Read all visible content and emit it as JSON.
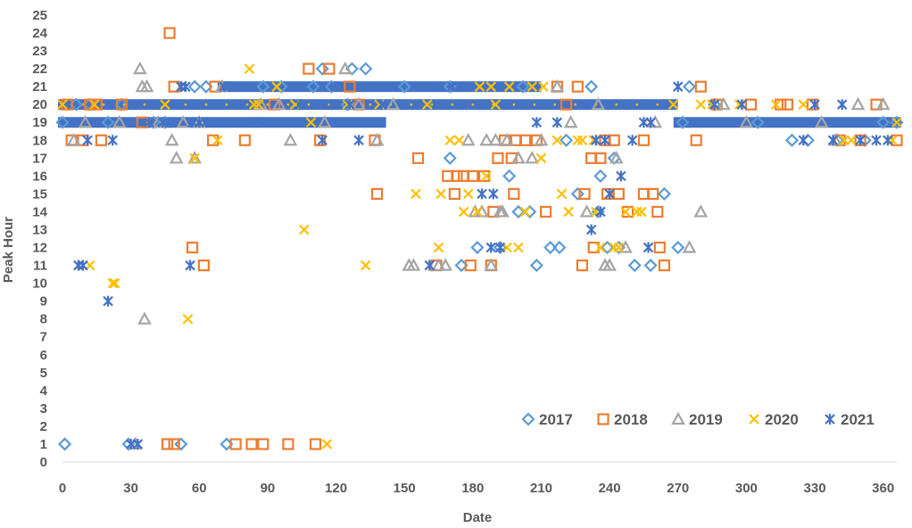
{
  "chart_data": {
    "type": "scatter",
    "title": "",
    "xlabel": "Date",
    "ylabel": "Peak Hour",
    "xlim": [
      0,
      366
    ],
    "ylim": [
      0,
      25
    ],
    "x_ticks": [
      0,
      30,
      60,
      90,
      120,
      150,
      180,
      210,
      240,
      270,
      300,
      330,
      360
    ],
    "y_ticks": [
      0,
      1,
      2,
      3,
      4,
      5,
      6,
      7,
      8,
      9,
      10,
      11,
      12,
      13,
      14,
      15,
      16,
      17,
      18,
      19,
      20,
      21,
      22,
      23,
      24,
      25
    ],
    "grid": "none",
    "legend_position": "bottom-right, inside plot",
    "series": [
      {
        "name": "2017",
        "marker": "diamond",
        "color": "#5B9BD5",
        "points": [
          [
            1,
            1
          ],
          [
            29,
            1
          ],
          [
            52,
            1
          ],
          [
            72,
            1
          ],
          [
            0,
            19
          ],
          [
            6,
            20
          ],
          [
            12,
            20
          ],
          [
            20,
            19
          ],
          [
            26,
            20
          ],
          [
            40,
            19
          ],
          [
            58,
            21
          ],
          [
            63,
            21
          ],
          [
            110,
            21
          ],
          [
            114,
            22
          ],
          [
            118,
            21
          ],
          [
            127,
            22
          ],
          [
            133,
            22
          ],
          [
            125,
            20
          ],
          [
            170,
            17
          ],
          [
            175,
            11
          ],
          [
            182,
            12
          ],
          [
            192,
            12
          ],
          [
            196,
            16
          ],
          [
            200,
            14
          ],
          [
            205,
            14
          ],
          [
            208,
            11
          ],
          [
            214,
            12
          ],
          [
            218,
            12
          ],
          [
            221,
            18
          ],
          [
            226,
            15
          ],
          [
            232,
            21
          ],
          [
            235,
            14
          ],
          [
            239,
            12
          ],
          [
            242,
            17
          ],
          [
            251,
            11
          ],
          [
            258,
            11
          ],
          [
            264,
            15
          ],
          [
            270,
            12
          ],
          [
            275,
            21
          ],
          [
            272,
            19
          ],
          [
            286,
            20
          ],
          [
            305,
            19
          ],
          [
            320,
            18
          ],
          [
            327,
            18
          ],
          [
            340,
            18
          ],
          [
            352,
            18
          ],
          [
            360,
            19
          ],
          [
            366,
            19
          ],
          [
            45,
            19
          ],
          [
            88,
            21
          ],
          [
            96,
            21
          ],
          [
            150,
            21
          ],
          [
            170,
            21
          ],
          [
            202,
            21
          ],
          [
            236,
            16
          ],
          [
            244,
            12
          ]
        ]
      },
      {
        "name": "2018",
        "marker": "square",
        "color": "#ED7D31",
        "points": [
          [
            4,
            18
          ],
          [
            9,
            18
          ],
          [
            12,
            20
          ],
          [
            17,
            18
          ],
          [
            26,
            20
          ],
          [
            46,
            1
          ],
          [
            49,
            1
          ],
          [
            47,
            24
          ],
          [
            49,
            21
          ],
          [
            57,
            12
          ],
          [
            62,
            11
          ],
          [
            66,
            18
          ],
          [
            67,
            21
          ],
          [
            80,
            18
          ],
          [
            83,
            1
          ],
          [
            76,
            1
          ],
          [
            88,
            1
          ],
          [
            99,
            1
          ],
          [
            111,
            1
          ],
          [
            108,
            22
          ],
          [
            113,
            18
          ],
          [
            117,
            22
          ],
          [
            126,
            21
          ],
          [
            137,
            18
          ],
          [
            138,
            15
          ],
          [
            156,
            17
          ],
          [
            164,
            11
          ],
          [
            169,
            16
          ],
          [
            172,
            15
          ],
          [
            173,
            16
          ],
          [
            176,
            16
          ],
          [
            179,
            11
          ],
          [
            180,
            16
          ],
          [
            185,
            16
          ],
          [
            188,
            11
          ],
          [
            189,
            14
          ],
          [
            191,
            17
          ],
          [
            194,
            18
          ],
          [
            197,
            17
          ],
          [
            199,
            18
          ],
          [
            198,
            15
          ],
          [
            203,
            18
          ],
          [
            208,
            18
          ],
          [
            212,
            14
          ],
          [
            217,
            21
          ],
          [
            221,
            20
          ],
          [
            226,
            21
          ],
          [
            228,
            11
          ],
          [
            229,
            15
          ],
          [
            232,
            17
          ],
          [
            233,
            12
          ],
          [
            236,
            17
          ],
          [
            239,
            15
          ],
          [
            242,
            18
          ],
          [
            244,
            15
          ],
          [
            248,
            14
          ],
          [
            255,
            15
          ],
          [
            259,
            15
          ],
          [
            262,
            12
          ],
          [
            261,
            14
          ],
          [
            264,
            11
          ],
          [
            278,
            18
          ],
          [
            280,
            21
          ],
          [
            287,
            20
          ],
          [
            302,
            20
          ],
          [
            315,
            20
          ],
          [
            318,
            20
          ],
          [
            329,
            20
          ],
          [
            341,
            18
          ],
          [
            350,
            18
          ],
          [
            357,
            20
          ],
          [
            366,
            18
          ],
          [
            2,
            20
          ],
          [
            15,
            20
          ],
          [
            35,
            19
          ],
          [
            93,
            20
          ],
          [
            130,
            20
          ],
          [
            238,
            18
          ],
          [
            255,
            18
          ]
        ]
      },
      {
        "name": "2019",
        "marker": "triangle",
        "color": "#A5A5A5",
        "points": [
          [
            32,
            1
          ],
          [
            34,
            22
          ],
          [
            35,
            21
          ],
          [
            37,
            21
          ],
          [
            36,
            8
          ],
          [
            42,
            19
          ],
          [
            48,
            18
          ],
          [
            50,
            17
          ],
          [
            53,
            19
          ],
          [
            58,
            17
          ],
          [
            70,
            21
          ],
          [
            87,
            20
          ],
          [
            100,
            18
          ],
          [
            115,
            19
          ],
          [
            124,
            22
          ],
          [
            130,
            20
          ],
          [
            138,
            18
          ],
          [
            152,
            11
          ],
          [
            154,
            11
          ],
          [
            165,
            11
          ],
          [
            168,
            11
          ],
          [
            178,
            18
          ],
          [
            181,
            14
          ],
          [
            184,
            14
          ],
          [
            186,
            18
          ],
          [
            188,
            11
          ],
          [
            190,
            18
          ],
          [
            192,
            14
          ],
          [
            193,
            14
          ],
          [
            195,
            18
          ],
          [
            200,
            17
          ],
          [
            206,
            17
          ],
          [
            210,
            18
          ],
          [
            217,
            21
          ],
          [
            223,
            19
          ],
          [
            230,
            14
          ],
          [
            238,
            11
          ],
          [
            240,
            11
          ],
          [
            243,
            17
          ],
          [
            247,
            12
          ],
          [
            275,
            12
          ],
          [
            280,
            14
          ],
          [
            290,
            20
          ],
          [
            300,
            19
          ],
          [
            333,
            19
          ],
          [
            339,
            18
          ],
          [
            349,
            20
          ],
          [
            360,
            20
          ],
          [
            5,
            18
          ],
          [
            10,
            19
          ],
          [
            25,
            19
          ],
          [
            60,
            19
          ],
          [
            95,
            20
          ],
          [
            145,
            20
          ],
          [
            235,
            20
          ],
          [
            260,
            19
          ]
        ]
      },
      {
        "name": "2020",
        "marker": "x",
        "color": "#FFC000",
        "points": [
          [
            0,
            20
          ],
          [
            12,
            11
          ],
          [
            22,
            10
          ],
          [
            23,
            10
          ],
          [
            55,
            8
          ],
          [
            58,
            17
          ],
          [
            68,
            18
          ],
          [
            82,
            22
          ],
          [
            84,
            20
          ],
          [
            86,
            20
          ],
          [
            94,
            21
          ],
          [
            102,
            20
          ],
          [
            106,
            13
          ],
          [
            109,
            19
          ],
          [
            116,
            1
          ],
          [
            125,
            20
          ],
          [
            133,
            11
          ],
          [
            155,
            15
          ],
          [
            165,
            12
          ],
          [
            166,
            15
          ],
          [
            170,
            18
          ],
          [
            174,
            18
          ],
          [
            176,
            14
          ],
          [
            178,
            15
          ],
          [
            182,
            14
          ],
          [
            183,
            21
          ],
          [
            186,
            16
          ],
          [
            188,
            21
          ],
          [
            190,
            20
          ],
          [
            195,
            12
          ],
          [
            196,
            21
          ],
          [
            200,
            12
          ],
          [
            203,
            14
          ],
          [
            206,
            21
          ],
          [
            210,
            17
          ],
          [
            211,
            21
          ],
          [
            217,
            18
          ],
          [
            219,
            15
          ],
          [
            222,
            14
          ],
          [
            226,
            18
          ],
          [
            228,
            18
          ],
          [
            233,
            18
          ],
          [
            234,
            14
          ],
          [
            236,
            12
          ],
          [
            240,
            15
          ],
          [
            242,
            12
          ],
          [
            244,
            12
          ],
          [
            247,
            14
          ],
          [
            252,
            14
          ],
          [
            254,
            14
          ],
          [
            268,
            20
          ],
          [
            280,
            20
          ],
          [
            285,
            20
          ],
          [
            297,
            20
          ],
          [
            313,
            20
          ],
          [
            325,
            20
          ],
          [
            343,
            18
          ],
          [
            346,
            18
          ],
          [
            364,
            18
          ],
          [
            366,
            19
          ],
          [
            14,
            20
          ],
          [
            45,
            20
          ],
          [
            139,
            20
          ],
          [
            160,
            20
          ]
        ]
      },
      {
        "name": "2021",
        "marker": "asterisk",
        "color": "#4472C4",
        "points": [
          [
            7,
            11
          ],
          [
            9,
            11
          ],
          [
            11,
            18
          ],
          [
            20,
            9
          ],
          [
            22,
            18
          ],
          [
            30,
            1
          ],
          [
            33,
            1
          ],
          [
            38,
            19
          ],
          [
            44,
            19
          ],
          [
            47,
            19
          ],
          [
            52,
            21
          ],
          [
            54,
            21
          ],
          [
            56,
            11
          ],
          [
            57,
            19
          ],
          [
            60,
            19
          ],
          [
            63,
            19
          ],
          [
            71,
            21
          ],
          [
            73,
            21
          ],
          [
            85,
            19
          ],
          [
            104,
            20
          ],
          [
            114,
            18
          ],
          [
            118,
            20
          ],
          [
            120,
            21
          ],
          [
            126,
            20
          ],
          [
            130,
            18
          ],
          [
            140,
            20
          ],
          [
            161,
            11
          ],
          [
            171,
            21
          ],
          [
            184,
            15
          ],
          [
            188,
            12
          ],
          [
            189,
            15
          ],
          [
            192,
            12
          ],
          [
            208,
            19
          ],
          [
            217,
            19
          ],
          [
            232,
            13
          ],
          [
            234,
            18
          ],
          [
            236,
            14
          ],
          [
            238,
            18
          ],
          [
            240,
            15
          ],
          [
            245,
            16
          ],
          [
            250,
            18
          ],
          [
            255,
            19
          ],
          [
            257,
            12
          ],
          [
            258,
            19
          ],
          [
            270,
            21
          ],
          [
            286,
            20
          ],
          [
            298,
            20
          ],
          [
            325,
            18
          ],
          [
            330,
            20
          ],
          [
            338,
            18
          ],
          [
            342,
            20
          ],
          [
            350,
            18
          ],
          [
            357,
            18
          ],
          [
            362,
            18
          ]
        ]
      }
    ],
    "dense_bands": [
      {
        "series": "2021",
        "y": 19,
        "x_range": [
          0,
          140
        ]
      },
      {
        "series": "2021",
        "y": 20,
        "x_range": [
          0,
          268
        ]
      },
      {
        "series": "2021",
        "y": 21,
        "x_range": [
          70,
          208
        ]
      },
      {
        "series": "2021",
        "y": 19,
        "x_range": [
          270,
          366
        ]
      },
      {
        "series": "2017",
        "y": 20,
        "x_range": [
          0,
          268
        ]
      },
      {
        "series": "2018",
        "y": 20,
        "x_range": [
          0,
          268
        ]
      },
      {
        "series": "2020",
        "y": 20,
        "x_range": [
          0,
          268
        ]
      }
    ],
    "legend": [
      "2017",
      "2018",
      "2019",
      "2020",
      "2021"
    ]
  }
}
